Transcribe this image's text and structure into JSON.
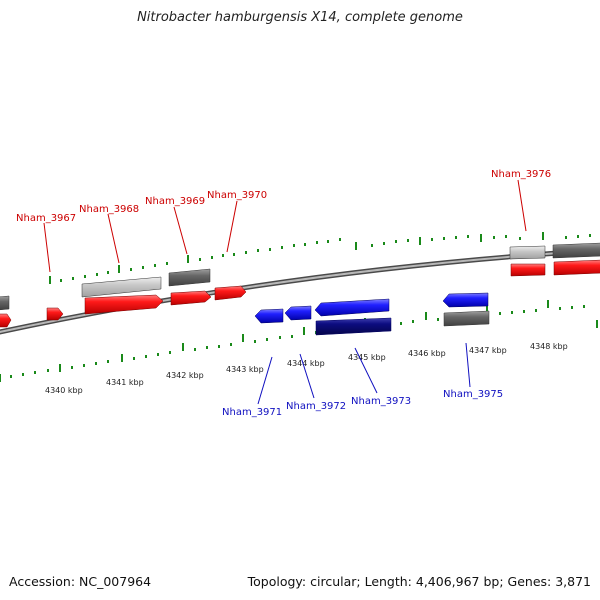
{
  "title": "Nitrobacter hamburgensis X14, complete genome",
  "footer": {
    "accession": "Accession: NC_007964",
    "summary": "Topology: circular; Length: 4,406,967 bp; Genes: 3,871"
  },
  "colors": {
    "forward_gene": "#e8000b",
    "reverse_gene": "#1010e0",
    "reverse_gene_dark": "#0a0a80",
    "rna_light": "#c0c0c0",
    "rna_dark": "#606060",
    "backbone": "#7a7a7a",
    "tick": "#1a8a1a",
    "forward_label": "#cc0000",
    "reverse_label": "#1010c0"
  },
  "axis": {
    "ticks": [
      "4340 kbp",
      "4341 kbp",
      "4342 kbp",
      "4343 kbp",
      "4344 kbp",
      "4345 kbp",
      "4346 kbp",
      "4347 kbp",
      "4348 kbp"
    ]
  },
  "forward_labels": [
    "Nham_3967",
    "Nham_3968",
    "Nham_3969",
    "Nham_3970",
    "Nham_3976"
  ],
  "reverse_labels": [
    "Nham_3971",
    "Nham_3972",
    "Nham_3973",
    "Nham_3975"
  ]
}
